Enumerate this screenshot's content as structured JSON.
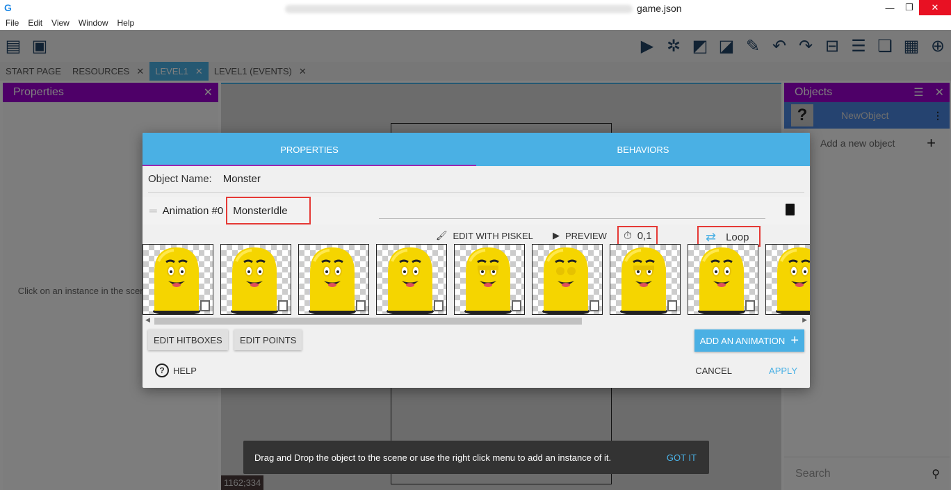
{
  "window": {
    "title": "game.json",
    "minimize": "—",
    "maximize": "❐",
    "close": "✕"
  },
  "menu": [
    "File",
    "Edit",
    "View",
    "Window",
    "Help"
  ],
  "toolbar": {
    "left_icons": [
      "project-manager-icon",
      "scene-window-icon"
    ],
    "right_icons": [
      "preview-play-icon",
      "debug-bug-icon",
      "object-editor-icon",
      "objects-groups-icon",
      "properties-editor-icon",
      "undo-icon",
      "redo-icon",
      "delete-instance-icon",
      "instances-list-icon",
      "layers-icon",
      "grid-icon",
      "zoom-reset-icon"
    ]
  },
  "tabs": [
    {
      "label": "START PAGE",
      "closable": false
    },
    {
      "label": "RESOURCES",
      "closable": true
    },
    {
      "label": "LEVEL1",
      "closable": true,
      "active": true
    },
    {
      "label": "LEVEL1 (EVENTS)",
      "closable": true
    }
  ],
  "properties_panel": {
    "title": "Properties",
    "hint": "Click on an instance in the scene to display its properties"
  },
  "canvas": {
    "coords": "1162;334"
  },
  "objects_panel": {
    "title": "Objects",
    "items": [
      {
        "name": "NewObject"
      }
    ],
    "add_label": "Add a new object",
    "search_placeholder": "Search"
  },
  "dialog": {
    "tabs": [
      {
        "label": "PROPERTIES",
        "active": true
      },
      {
        "label": "BEHAVIORS"
      }
    ],
    "object_name_label": "Object Name:",
    "object_name": "Monster",
    "animation_label": "Animation #0",
    "animation_name": "MonsterIdle",
    "edit_piskel": "EDIT WITH PISKEL",
    "preview": "PREVIEW",
    "time_between_frames": "0,1",
    "loop": "Loop",
    "frames": [
      "open",
      "open",
      "open",
      "open",
      "half",
      "closed",
      "half",
      "open",
      "open"
    ],
    "edit_hitboxes": "EDIT HITBOXES",
    "edit_points": "EDIT POINTS",
    "add_animation": "ADD AN ANIMATION",
    "help": "HELP",
    "cancel": "CANCEL",
    "apply": "APPLY"
  },
  "snackbar": {
    "message": "Drag and Drop the object to the scene or use the right click menu to add an instance of it.",
    "action": "GOT IT"
  },
  "colors": {
    "accent": "#4ab0e4",
    "panel_header": "#9c00d0",
    "highlight_box": "#e53935"
  }
}
